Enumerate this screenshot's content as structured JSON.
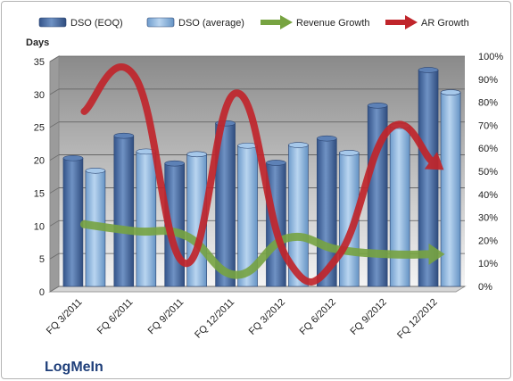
{
  "chart_data": {
    "type": "bar",
    "ylabel": "Days",
    "caption": "LogMeIn",
    "categories": [
      "FQ 3/2011",
      "FQ 6/2011",
      "FQ 9/2011",
      "FQ 12/2011",
      "FQ 3/2012",
      "FQ 6/2012",
      "FQ 9/2012",
      "FQ 12/2012"
    ],
    "ylim": [
      0,
      35
    ],
    "yticks": [
      0,
      5,
      10,
      15,
      20,
      25,
      30,
      35
    ],
    "y2lim": [
      0,
      1.0
    ],
    "y2ticks": [
      "0%",
      "10%",
      "20%",
      "30%",
      "40%",
      "50%",
      "60%",
      "70%",
      "80%",
      "90%",
      "100%"
    ],
    "grid": true,
    "legend_position": "top",
    "series": [
      {
        "name": "DSO (EOQ)",
        "kind": "bar",
        "axis": "left",
        "color": "#4f74a8",
        "values": [
          19.5,
          22.9,
          18.7,
          24.8,
          18.8,
          22.5,
          27.5,
          32.9
        ]
      },
      {
        "name": "DSO (average)",
        "kind": "bar",
        "axis": "left",
        "color": "#8fb6e0",
        "values": [
          17.6,
          20.5,
          20.1,
          21.4,
          21.5,
          20.3,
          24.4,
          29.5
        ]
      },
      {
        "name": "Revenue Growth",
        "kind": "line",
        "axis": "right",
        "color": "#77a341",
        "values": [
          0.27,
          0.24,
          0.22,
          0.05,
          0.21,
          0.16,
          0.14,
          0.14
        ]
      },
      {
        "name": "AR Growth",
        "kind": "line",
        "axis": "right",
        "color": "#c0252b",
        "values": [
          0.76,
          0.91,
          0.1,
          0.84,
          0.12,
          0.13,
          0.68,
          0.52
        ]
      }
    ]
  }
}
